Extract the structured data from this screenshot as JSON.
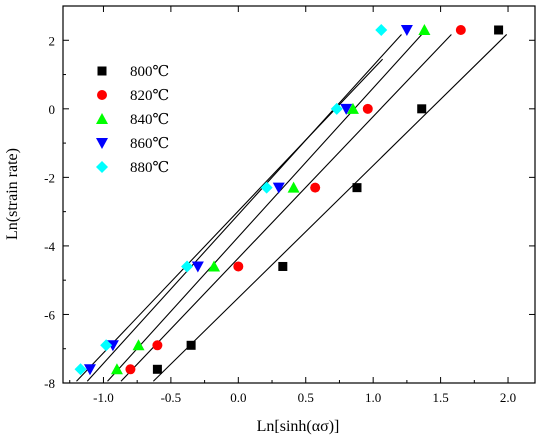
{
  "chart_data": {
    "type": "scatter",
    "title": "",
    "xlabel": "Ln[sinh(ασ)]",
    "ylabel": "Ln(strain rate)",
    "xlim": [
      -1.3,
      2.2
    ],
    "ylim": [
      -8,
      3
    ],
    "xticks": [
      -1.0,
      -0.5,
      0.0,
      0.5,
      1.0,
      1.5,
      2.0
    ],
    "xtick_labels": [
      "-1.0",
      "-0.5",
      "0.0",
      "0.5",
      "1.0",
      "1.5",
      "2.0"
    ],
    "yticks": [
      -8,
      -6,
      -4,
      -2,
      0,
      2
    ],
    "ytick_labels": [
      "-8",
      "-6",
      "-4",
      "-2",
      "0",
      "2"
    ],
    "grid": false,
    "legend_position": "top-left",
    "series": [
      {
        "name": "800℃",
        "marker": "square",
        "color": "#000000",
        "x": [
          -0.6,
          -0.35,
          0.33,
          0.88,
          1.36,
          1.93
        ],
        "y": [
          -7.6,
          -6.9,
          -4.6,
          -2.3,
          0.0,
          2.3
        ],
        "fit": [
          [
            -0.63,
            -7.95
          ],
          [
            1.99,
            2.17
          ]
        ]
      },
      {
        "name": "820℃",
        "marker": "circle",
        "color": "#ff0000",
        "x": [
          -0.8,
          -0.6,
          0.0,
          0.57,
          0.96,
          1.65
        ],
        "y": [
          -7.6,
          -6.9,
          -4.6,
          -2.3,
          0.0,
          2.3
        ],
        "fit": [
          [
            -0.87,
            -7.95
          ],
          [
            1.58,
            2.17
          ]
        ]
      },
      {
        "name": "840℃",
        "marker": "triangle-up",
        "color": "#00ff00",
        "x": [
          -0.9,
          -0.74,
          -0.18,
          0.41,
          0.85,
          1.38
        ],
        "y": [
          -7.6,
          -6.9,
          -4.6,
          -2.3,
          0.0,
          2.3
        ],
        "fit": [
          [
            -0.97,
            -7.95
          ],
          [
            1.36,
            2.17
          ]
        ]
      },
      {
        "name": "860℃",
        "marker": "triangle-down",
        "color": "#0000ff",
        "x": [
          -1.1,
          -0.93,
          -0.3,
          0.3,
          0.8,
          1.25
        ],
        "y": [
          -7.6,
          -6.9,
          -4.6,
          -2.3,
          0.0,
          2.3
        ],
        "fit": [
          [
            -1.12,
            -7.95
          ],
          [
            1.21,
            2.17
          ]
        ]
      },
      {
        "name": "880℃",
        "marker": "diamond",
        "color": "#00ffff",
        "x": [
          -1.17,
          -0.98,
          -0.38,
          0.21,
          0.73,
          1.06
        ],
        "y": [
          -7.6,
          -6.9,
          -4.6,
          -2.3,
          0.0,
          2.3
        ],
        "fit": [
          [
            -1.2,
            -7.95
          ],
          [
            1.07,
            1.45
          ]
        ]
      }
    ]
  }
}
